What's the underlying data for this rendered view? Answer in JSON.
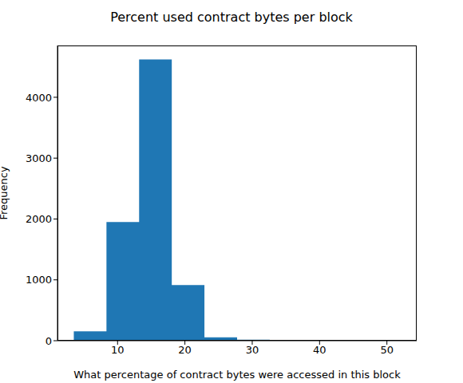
{
  "chart_data": {
    "type": "histogram",
    "title": "Percent used contract bytes per block",
    "x_label": "What percentage of contract bytes were accessed in this block",
    "y_label": "Frequency",
    "bins": [
      3.5,
      8.35,
      13.2,
      18.05,
      22.9,
      27.75,
      32.6,
      37.45,
      42.3,
      47.15,
      52.0
    ],
    "values": [
      155,
      1950,
      4620,
      915,
      55,
      15,
      3,
      2,
      1,
      1
    ],
    "color": "#1f77b4",
    "xlim": [
      1.075,
      54.425
    ],
    "xticks": [
      10,
      20,
      30,
      40,
      50
    ],
    "ylim": [
      0,
      4851
    ],
    "yticks": [
      0,
      1000,
      2000,
      3000,
      4000
    ],
    "grid": false
  }
}
